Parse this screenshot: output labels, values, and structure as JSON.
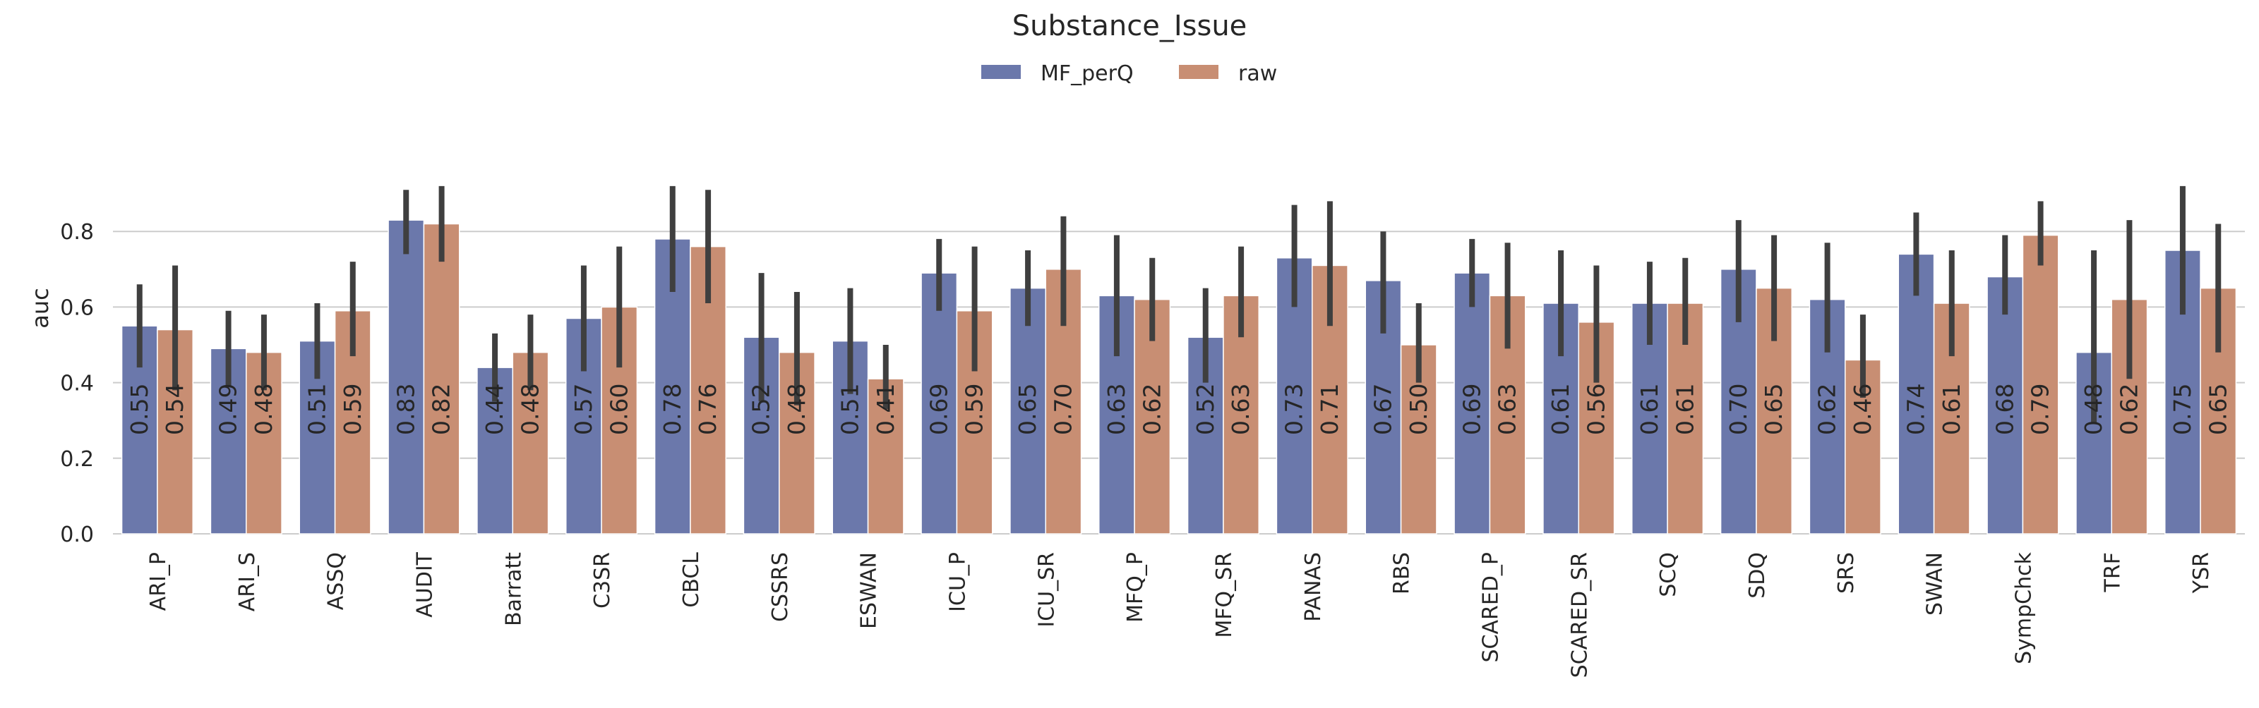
{
  "chart_data": {
    "type": "bar",
    "title": "Substance_Issue",
    "xlabel": "",
    "ylabel": "auc",
    "ylim": [
      0,
      0.93
    ],
    "yticks": [
      "0.0",
      "0.2",
      "0.4",
      "0.6",
      "0.8"
    ],
    "grid": true,
    "legend_position": "top-center",
    "categories": [
      "ARI_P",
      "ARI_S",
      "ASSQ",
      "AUDIT",
      "Barratt",
      "C3SR",
      "CBCL",
      "CSSRS",
      "ESWAN",
      "ICU_P",
      "ICU_SR",
      "MFQ_P",
      "MFQ_SR",
      "PANAS",
      "RBS",
      "SCARED_P",
      "SCARED_SR",
      "SCQ",
      "SDQ",
      "SRS",
      "SWAN",
      "SympChck",
      "TRF",
      "YSR"
    ],
    "series": [
      {
        "name": "MF_perQ",
        "color": "#6b78ab",
        "values": [
          0.55,
          0.49,
          0.51,
          0.83,
          0.44,
          0.57,
          0.78,
          0.52,
          0.51,
          0.69,
          0.65,
          0.63,
          0.52,
          0.73,
          0.67,
          0.69,
          0.61,
          0.61,
          0.7,
          0.62,
          0.74,
          0.68,
          0.48,
          0.75
        ],
        "labels": [
          "0.55",
          "0.49",
          "0.51",
          "0.83",
          "0.44",
          "0.57",
          "0.78",
          "0.52",
          "0.51",
          "0.69",
          "0.65",
          "0.63",
          "0.52",
          "0.73",
          "0.67",
          "0.69",
          "0.61",
          "0.61",
          "0.70",
          "0.62",
          "0.74",
          "0.68",
          "0.48",
          "0.75"
        ],
        "ci_low": [
          0.44,
          0.39,
          0.41,
          0.74,
          0.35,
          0.43,
          0.64,
          0.35,
          0.37,
          0.59,
          0.55,
          0.47,
          0.4,
          0.6,
          0.53,
          0.6,
          0.47,
          0.5,
          0.56,
          0.48,
          0.63,
          0.58,
          0.29,
          0.58
        ],
        "ci_high": [
          0.66,
          0.59,
          0.61,
          0.91,
          0.53,
          0.71,
          0.92,
          0.69,
          0.65,
          0.78,
          0.75,
          0.79,
          0.65,
          0.87,
          0.8,
          0.78,
          0.75,
          0.72,
          0.83,
          0.77,
          0.85,
          0.79,
          0.75,
          0.92
        ]
      },
      {
        "name": "raw",
        "color": "#c88e73",
        "values": [
          0.54,
          0.48,
          0.59,
          0.82,
          0.48,
          0.6,
          0.76,
          0.48,
          0.41,
          0.59,
          0.7,
          0.62,
          0.63,
          0.71,
          0.5,
          0.63,
          0.56,
          0.61,
          0.65,
          0.46,
          0.61,
          0.79,
          0.62,
          0.65
        ],
        "labels": [
          "0.54",
          "0.48",
          "0.59",
          "0.82",
          "0.48",
          "0.60",
          "0.76",
          "0.48",
          "0.41",
          "0.59",
          "0.70",
          "0.62",
          "0.63",
          "0.71",
          "0.50",
          "0.63",
          "0.56",
          "0.61",
          "0.65",
          "0.46",
          "0.61",
          "0.79",
          "0.62",
          "0.65"
        ],
        "ci_low": [
          0.38,
          0.38,
          0.47,
          0.72,
          0.38,
          0.44,
          0.61,
          0.34,
          0.33,
          0.43,
          0.55,
          0.51,
          0.52,
          0.55,
          0.4,
          0.49,
          0.4,
          0.5,
          0.51,
          0.36,
          0.47,
          0.71,
          0.41,
          0.48
        ],
        "ci_high": [
          0.71,
          0.58,
          0.72,
          0.92,
          0.58,
          0.76,
          0.91,
          0.64,
          0.5,
          0.76,
          0.84,
          0.73,
          0.76,
          0.88,
          0.61,
          0.77,
          0.71,
          0.73,
          0.79,
          0.58,
          0.75,
          0.88,
          0.83,
          0.82
        ]
      }
    ]
  }
}
